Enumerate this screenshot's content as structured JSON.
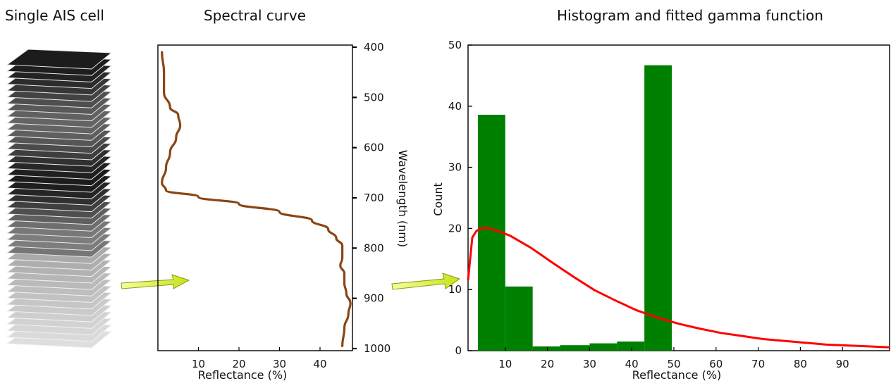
{
  "panels": {
    "ais": {
      "title": "Single AIS cell"
    },
    "spectral": {
      "title": "Spectral curve"
    },
    "hist": {
      "title": "Histogram and fitted gamma function"
    }
  },
  "colors": {
    "curve": "#8B4513",
    "bars": "#008000",
    "gamma": "#ff0000",
    "arrow": "#d9f02a"
  },
  "chart_data": [
    {
      "type": "line",
      "title": "Spectral curve",
      "xlabel": "Reflectance (%)",
      "ylabel": "Wavelength (nm)",
      "xlim": [
        0,
        48
      ],
      "ylim": [
        400,
        1000
      ],
      "y_inverted": true,
      "xticks": [
        10,
        20,
        30,
        40
      ],
      "yticks": [
        400,
        500,
        600,
        700,
        800,
        900,
        1000
      ],
      "series": [
        {
          "points": [
            [
              1.0,
              410
            ],
            [
              1.5,
              450
            ],
            [
              1.5,
              490
            ],
            [
              3.0,
              520
            ],
            [
              5.0,
              535
            ],
            [
              5.5,
              555
            ],
            [
              4.5,
              580
            ],
            [
              3.0,
              610
            ],
            [
              2.0,
              640
            ],
            [
              1.0,
              670
            ],
            [
              2.0,
              685
            ],
            [
              10,
              698
            ],
            [
              20,
              712
            ],
            [
              30,
              728
            ],
            [
              38,
              745
            ],
            [
              42,
              762
            ],
            [
              44,
              780
            ],
            [
              45.5,
              795
            ],
            [
              45.5,
              820
            ],
            [
              45,
              835
            ],
            [
              46,
              850
            ],
            [
              46,
              870
            ],
            [
              46.5,
              890
            ],
            [
              47.5,
              910
            ],
            [
              47,
              930
            ],
            [
              46,
              960
            ],
            [
              45.5,
              995
            ]
          ]
        }
      ]
    },
    {
      "type": "bar",
      "title": "Histogram and fitted gamma function",
      "xlabel": "Reflectance (%)",
      "ylabel": "Count",
      "xlim": [
        0,
        100
      ],
      "ylim": [
        0,
        50
      ],
      "xticks": [
        10,
        20,
        30,
        40,
        50,
        60,
        70,
        80,
        90
      ],
      "yticks": [
        0,
        10,
        20,
        30,
        40,
        50
      ],
      "bins": [
        {
          "x0": 3.5,
          "x1": 10,
          "value": 38.6
        },
        {
          "x0": 10,
          "x1": 16.5,
          "value": 10.5
        },
        {
          "x0": 16.5,
          "x1": 23,
          "value": 0.7
        },
        {
          "x0": 23,
          "x1": 30,
          "value": 0.9
        },
        {
          "x0": 30,
          "x1": 36.5,
          "value": 1.2
        },
        {
          "x0": 36.5,
          "x1": 43,
          "value": 1.5
        },
        {
          "x0": 43,
          "x1": 49.5,
          "value": 46.7
        }
      ],
      "series": [
        {
          "type": "line",
          "points": [
            [
              0,
              11.5
            ],
            [
              1,
              18.5
            ],
            [
              2,
              19.6
            ],
            [
              3,
              20.0
            ],
            [
              4,
              20.1
            ],
            [
              5,
              20.0
            ],
            [
              7,
              19.6
            ],
            [
              10,
              18.8
            ],
            [
              15,
              16.8
            ],
            [
              20,
              14.4
            ],
            [
              25,
              12.1
            ],
            [
              30,
              9.9
            ],
            [
              35,
              8.2
            ],
            [
              40,
              6.6
            ],
            [
              45,
              5.4
            ],
            [
              50,
              4.4
            ],
            [
              55,
              3.6
            ],
            [
              60,
              2.9
            ],
            [
              65,
              2.4
            ],
            [
              70,
              1.9
            ],
            [
              75,
              1.6
            ],
            [
              80,
              1.3
            ],
            [
              85,
              1.0
            ],
            [
              90,
              0.85
            ],
            [
              95,
              0.7
            ],
            [
              100,
              0.55
            ]
          ]
        }
      ]
    }
  ]
}
